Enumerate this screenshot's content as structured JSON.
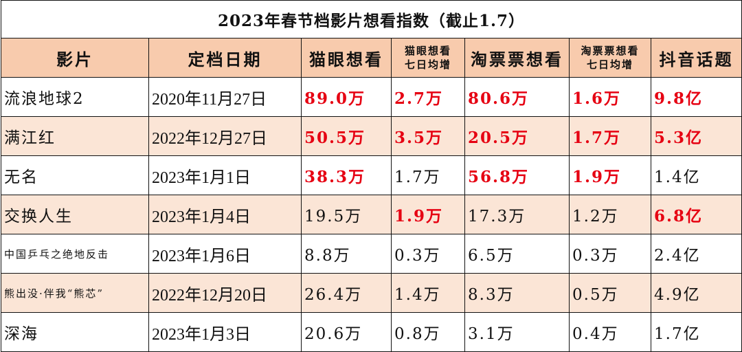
{
  "title": "2023年春节档影片想看指数（截止1.7）",
  "headers": {
    "film": "影片",
    "date": "定档日期",
    "maoyan": "猫眼想看",
    "maoyan_week_1": "猫眼想看",
    "maoyan_week_2": "七日均增",
    "taopiao": "淘票票想看",
    "taopiao_week_1": "淘票票想看",
    "taopiao_week_2": "七日均增",
    "douyin": "抖音话题"
  },
  "rows": [
    {
      "film": "流浪地球2",
      "date": "2020年11月27日",
      "maoyan": "89.0万",
      "maoyan_week": "2.7万",
      "taopiao": "80.6万",
      "taopiao_week": "1.6万",
      "douyin": "9.8亿"
    },
    {
      "film": "满江红",
      "date": "2022年12月27日",
      "maoyan": "50.5万",
      "maoyan_week": "3.5万",
      "taopiao": "20.5万",
      "taopiao_week": "1.7万",
      "douyin": "5.3亿"
    },
    {
      "film": "无名",
      "date": "2023年1月1日",
      "maoyan": "38.3万",
      "maoyan_week": "1.7万",
      "taopiao": "56.8万",
      "taopiao_week": "1.9万",
      "douyin": "1.4亿"
    },
    {
      "film": "交换人生",
      "date": "2023年1月4日",
      "maoyan": "19.5万",
      "maoyan_week": "1.9万",
      "taopiao": "17.3万",
      "taopiao_week": "1.2万",
      "douyin": "6.8亿"
    },
    {
      "film": "中国乒乓之绝地反击",
      "date": "2023年1月6日",
      "maoyan": "8.8万",
      "maoyan_week": "0.3万",
      "taopiao": "6.5万",
      "taopiao_week": "0.3万",
      "douyin": "2.4亿"
    },
    {
      "film": "熊出没·伴我“熊芯”",
      "date": "2022年12月20日",
      "maoyan": "26.4万",
      "maoyan_week": "1.4万",
      "taopiao": "8.3万",
      "taopiao_week": "0.5万",
      "douyin": "4.9亿"
    },
    {
      "film": "深海",
      "date": "2023年1月3日",
      "maoyan": "20.6万",
      "maoyan_week": "0.8万",
      "taopiao": "3.1万",
      "taopiao_week": "0.4万",
      "douyin": "1.7亿"
    }
  ],
  "colors": {
    "header_bg": "#f8cbad",
    "alt_row_bg": "#fbe5d6",
    "highlight_text": "#e60012"
  }
}
